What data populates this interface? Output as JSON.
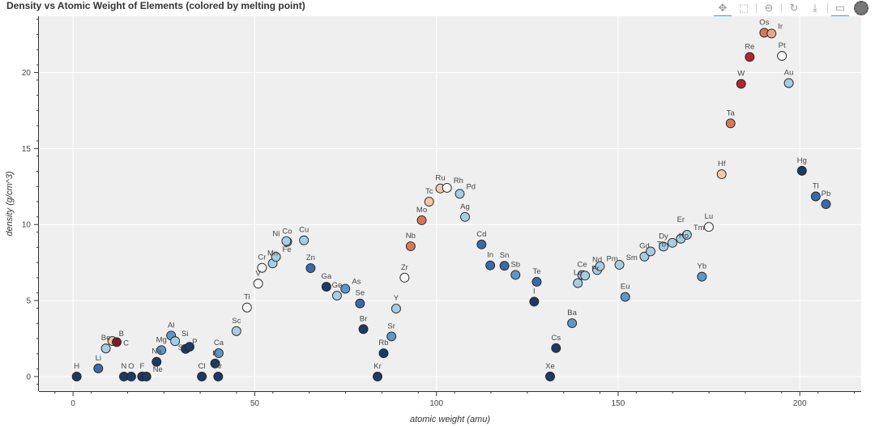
{
  "title": "Density vs Atomic Weight of Elements (colored by melting point)",
  "toolbar": [
    {
      "name": "pan-tool",
      "icon": "✥",
      "active": true
    },
    {
      "name": "box-zoom-tool",
      "icon": "⬚",
      "active": false
    },
    {
      "name": "wheel-zoom-tool",
      "icon": "⊖",
      "active": false
    },
    {
      "name": "reset-tool",
      "icon": "↻",
      "active": false
    },
    {
      "name": "save-tool",
      "icon": "⤓",
      "active": false
    },
    {
      "name": "hover-tool",
      "icon": "▭",
      "active": true
    }
  ],
  "colors": {
    "plot_bg": "#efefef",
    "grid": "#ffffff",
    "outline": "#1f1f1f"
  },
  "chart_data": {
    "type": "scatter",
    "title": "Density vs Atomic Weight of Elements (colored by melting point)",
    "xlabel": "atomic weight (amu)",
    "ylabel": "density (g/cm^3)",
    "xlim": [
      -9.4,
      216.9
    ],
    "ylim": [
      -0.96,
      23.7
    ],
    "xticks": [
      0,
      50,
      100,
      150,
      200
    ],
    "yticks": [
      0,
      5,
      10,
      15,
      20
    ],
    "grid": true,
    "points": [
      {
        "label": "H",
        "x": 1.008,
        "y": 0.0001,
        "color": "#1c3a63"
      },
      {
        "label": "Li",
        "x": 6.94,
        "y": 0.534,
        "color": "#3a6aa8"
      },
      {
        "label": "Be",
        "x": 9.012,
        "y": 1.85,
        "color": "#a6cde3"
      },
      {
        "label": "B",
        "x": 10.81,
        "y": 2.34,
        "color": "#f2c9a8"
      },
      {
        "label": "C",
        "x": 12.011,
        "y": 2.267,
        "color": "#7b1b2c"
      },
      {
        "label": "N",
        "x": 14.007,
        "y": 0.001,
        "color": "#1c3a63"
      },
      {
        "label": "O",
        "x": 15.999,
        "y": 0.001,
        "color": "#1c3a63"
      },
      {
        "label": "F",
        "x": 18.998,
        "y": 0.002,
        "color": "#1c3a63"
      },
      {
        "label": "Ne",
        "x": 20.18,
        "y": 0.001,
        "color": "#1c3a63"
      },
      {
        "label": "Na",
        "x": 22.99,
        "y": 0.971,
        "color": "#1c3a63"
      },
      {
        "label": "Mg",
        "x": 24.305,
        "y": 1.738,
        "color": "#5d97c8"
      },
      {
        "label": "Al",
        "x": 26.982,
        "y": 2.698,
        "color": "#5d97c8"
      },
      {
        "label": "Si",
        "x": 28.085,
        "y": 2.329,
        "color": "#a6cde3"
      },
      {
        "label": "P",
        "x": 30.974,
        "y": 1.82,
        "color": "#1c3a63"
      },
      {
        "label": "S",
        "x": 32.06,
        "y": 1.96,
        "color": "#1c3a63"
      },
      {
        "label": "Cl",
        "x": 35.45,
        "y": 0.003,
        "color": "#1c3a63"
      },
      {
        "label": "K",
        "x": 39.098,
        "y": 0.862,
        "color": "#1c3a63"
      },
      {
        "label": "Ar",
        "x": 39.948,
        "y": 0.002,
        "color": "#1c3a63"
      },
      {
        "label": "Ca",
        "x": 40.078,
        "y": 1.54,
        "color": "#5d97c8"
      },
      {
        "label": "Sc",
        "x": 44.956,
        "y": 2.989,
        "color": "#a6cde3"
      },
      {
        "label": "Ti",
        "x": 47.867,
        "y": 4.54,
        "color": "#f6f6f6"
      },
      {
        "label": "V",
        "x": 50.942,
        "y": 6.11,
        "color": "#f6f6f6"
      },
      {
        "label": "Cr",
        "x": 51.996,
        "y": 7.15,
        "color": "#f6f6f6"
      },
      {
        "label": "Mn",
        "x": 54.938,
        "y": 7.44,
        "color": "#a6cde3"
      },
      {
        "label": "Fe",
        "x": 55.845,
        "y": 7.874,
        "color": "#a6cde3"
      },
      {
        "label": "Co",
        "x": 58.933,
        "y": 8.86,
        "color": "#a6cde3"
      },
      {
        "label": "Ni",
        "x": 58.693,
        "y": 8.912,
        "color": "#a6cde3"
      },
      {
        "label": "Cu",
        "x": 63.546,
        "y": 8.96,
        "color": "#a6cde3"
      },
      {
        "label": "Zn",
        "x": 65.38,
        "y": 7.134,
        "color": "#3a6aa8"
      },
      {
        "label": "Ga",
        "x": 69.723,
        "y": 5.907,
        "color": "#1c3a63"
      },
      {
        "label": "Ge",
        "x": 72.63,
        "y": 5.323,
        "color": "#a6cde3"
      },
      {
        "label": "As",
        "x": 74.922,
        "y": 5.776,
        "color": "#5d97c8"
      },
      {
        "label": "Se",
        "x": 78.971,
        "y": 4.809,
        "color": "#3a6aa8"
      },
      {
        "label": "Br",
        "x": 79.904,
        "y": 3.122,
        "color": "#1c3a63"
      },
      {
        "label": "Kr",
        "x": 83.798,
        "y": 0.004,
        "color": "#1c3a63"
      },
      {
        "label": "Rb",
        "x": 85.468,
        "y": 1.532,
        "color": "#1c3a63"
      },
      {
        "label": "Sr",
        "x": 87.62,
        "y": 2.64,
        "color": "#5d97c8"
      },
      {
        "label": "Y",
        "x": 88.906,
        "y": 4.469,
        "color": "#a6cde3"
      },
      {
        "label": "Zr",
        "x": 91.224,
        "y": 6.506,
        "color": "#f6f6f6"
      },
      {
        "label": "Nb",
        "x": 92.906,
        "y": 8.57,
        "color": "#d9765a"
      },
      {
        "label": "Mo",
        "x": 95.95,
        "y": 10.28,
        "color": "#d9765a"
      },
      {
        "label": "Tc",
        "x": 98.0,
        "y": 11.5,
        "color": "#f2c9a8"
      },
      {
        "label": "Ru",
        "x": 101.07,
        "y": 12.37,
        "color": "#f2c9a8"
      },
      {
        "label": "Rh",
        "x": 102.91,
        "y": 12.41,
        "color": "#f6f6f6"
      },
      {
        "label": "Pd",
        "x": 106.42,
        "y": 12.02,
        "color": "#a6cde3"
      },
      {
        "label": "Ag",
        "x": 107.87,
        "y": 10.501,
        "color": "#a6cde3"
      },
      {
        "label": "Cd",
        "x": 112.41,
        "y": 8.69,
        "color": "#3a6aa8"
      },
      {
        "label": "In",
        "x": 114.82,
        "y": 7.31,
        "color": "#3a6aa8"
      },
      {
        "label": "Sn",
        "x": 118.71,
        "y": 7.287,
        "color": "#3a6aa8"
      },
      {
        "label": "Sb",
        "x": 121.76,
        "y": 6.685,
        "color": "#5d97c8"
      },
      {
        "label": "Te",
        "x": 127.6,
        "y": 6.232,
        "color": "#3a6aa8"
      },
      {
        "label": "I",
        "x": 126.9,
        "y": 4.93,
        "color": "#1c3a63"
      },
      {
        "label": "Xe",
        "x": 131.29,
        "y": 0.006,
        "color": "#1c3a63"
      },
      {
        "label": "Cs",
        "x": 132.91,
        "y": 1.873,
        "color": "#1c3a63"
      },
      {
        "label": "Ba",
        "x": 137.33,
        "y": 3.51,
        "color": "#5d97c8"
      },
      {
        "label": "La",
        "x": 138.91,
        "y": 6.145,
        "color": "#a6cde3"
      },
      {
        "label": "Ce",
        "x": 140.12,
        "y": 6.68,
        "color": "#a6cde3"
      },
      {
        "label": "Pr",
        "x": 140.91,
        "y": 6.64,
        "color": "#a6cde3"
      },
      {
        "label": "Nd",
        "x": 144.24,
        "y": 7.007,
        "color": "#a6cde3"
      },
      {
        "label": "Pm",
        "x": 145.0,
        "y": 7.26,
        "color": "#a6cde3"
      },
      {
        "label": "Sm",
        "x": 150.36,
        "y": 7.35,
        "color": "#a6cde3"
      },
      {
        "label": "Eu",
        "x": 151.96,
        "y": 5.243,
        "color": "#5d97c8"
      },
      {
        "label": "Gd",
        "x": 157.25,
        "y": 7.895,
        "color": "#a6cde3"
      },
      {
        "label": "Tb",
        "x": 158.93,
        "y": 8.229,
        "color": "#a6cde3"
      },
      {
        "label": "Dy",
        "x": 162.5,
        "y": 8.55,
        "color": "#a6cde3"
      },
      {
        "label": "Ho",
        "x": 164.93,
        "y": 8.795,
        "color": "#a6cde3"
      },
      {
        "label": "Er",
        "x": 167.26,
        "y": 9.066,
        "color": "#a6cde3"
      },
      {
        "label": "Tm",
        "x": 168.93,
        "y": 9.321,
        "color": "#a6cde3"
      },
      {
        "label": "Yb",
        "x": 173.05,
        "y": 6.57,
        "color": "#5d97c8"
      },
      {
        "label": "Lu",
        "x": 174.97,
        "y": 9.841,
        "color": "#f6f6f6"
      },
      {
        "label": "Hf",
        "x": 178.49,
        "y": 13.31,
        "color": "#f2c9a8"
      },
      {
        "label": "Ta",
        "x": 180.95,
        "y": 16.654,
        "color": "#d9765a"
      },
      {
        "label": "W",
        "x": 183.84,
        "y": 19.25,
        "color": "#b2262f"
      },
      {
        "label": "Re",
        "x": 186.21,
        "y": 21.02,
        "color": "#b2262f"
      },
      {
        "label": "Os",
        "x": 190.23,
        "y": 22.61,
        "color": "#d9765a"
      },
      {
        "label": "Ir",
        "x": 192.22,
        "y": 22.56,
        "color": "#e9a687"
      },
      {
        "label": "Pt",
        "x": 195.08,
        "y": 21.09,
        "color": "#f6f6f6"
      },
      {
        "label": "Au",
        "x": 196.97,
        "y": 19.3,
        "color": "#a6cde3"
      },
      {
        "label": "Hg",
        "x": 200.59,
        "y": 13.534,
        "color": "#1c3a63"
      },
      {
        "label": "Tl",
        "x": 204.38,
        "y": 11.85,
        "color": "#3a6aa8"
      },
      {
        "label": "Pb",
        "x": 207.2,
        "y": 11.34,
        "color": "#3a6aa8"
      }
    ]
  }
}
